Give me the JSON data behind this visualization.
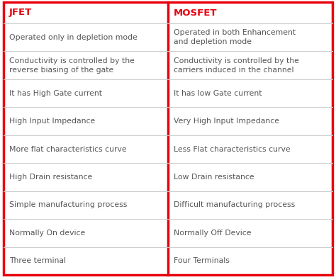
{
  "header_left": "JFET",
  "header_right": "MOSFET",
  "header_color": "#e8000d",
  "text_color": "#555555",
  "border_color": "#e8000d",
  "divider_color": "#cccccc",
  "bg_color": "#ffffff",
  "rows": [
    [
      "Operated only in depletion mode",
      "Operated in both Enhancement\nand depletion mode"
    ],
    [
      "Conductivity is controlled by the\nreverse biasing of the gate",
      "Conductivity is controlled by the\ncarriers induced in the channel"
    ],
    [
      "It has High Gate current",
      "It has low Gate current"
    ],
    [
      "High Input Impedance",
      "Very High Input Impedance"
    ],
    [
      "More flat characteristics curve",
      "Less Flat characteristics curve"
    ],
    [
      "High Drain resistance",
      "Low Drain resistance"
    ],
    [
      "Simple manufacturing process",
      "Difficult manufacturing process"
    ],
    [
      "Normally On device",
      "Normally Off Device"
    ],
    [
      "Three terminal",
      "Four Terminals"
    ]
  ],
  "font_size_header": 9.5,
  "font_size_body": 7.8,
  "figsize": [
    4.74,
    3.91
  ],
  "dpi": 100
}
